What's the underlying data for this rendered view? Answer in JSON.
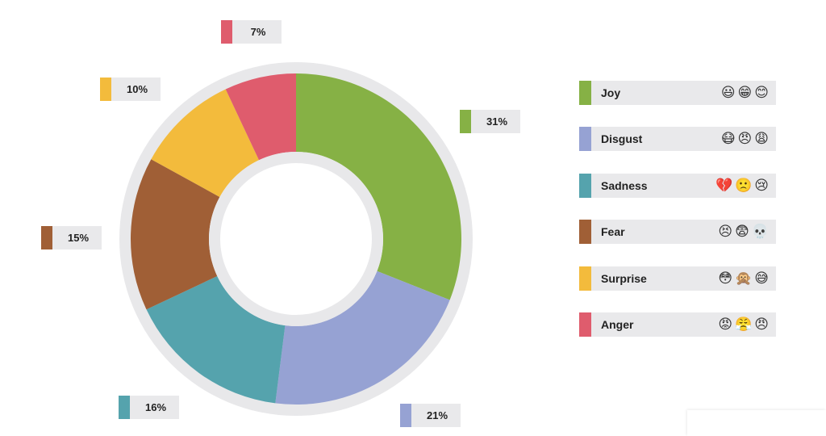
{
  "chart_data": {
    "type": "pie",
    "categories": [
      "Joy",
      "Disgust",
      "Sadness",
      "Fear",
      "Surprise",
      "Anger"
    ],
    "values": [
      31,
      21,
      16,
      15,
      10,
      7
    ],
    "labels": [
      "31%",
      "21%",
      "16%",
      "15%",
      "10%",
      "7%"
    ],
    "colors": [
      "#86b145",
      "#96a2d3",
      "#55a3ad",
      "#a05f36",
      "#f3bb3c",
      "#df5c6d"
    ],
    "ring_color": "#e8e8ea",
    "donut": true,
    "legend_position": "right"
  },
  "legend": [
    {
      "label": "Joy",
      "color": "#86b145",
      "emoji": "😃😁😊"
    },
    {
      "label": "Disgust",
      "color": "#96a2d3",
      "emoji": "😷😠😩"
    },
    {
      "label": "Sadness",
      "color": "#55a3ad",
      "emoji": "💔🙁😢"
    },
    {
      "label": "Fear",
      "color": "#a05f36",
      "emoji": "😣😨💀"
    },
    {
      "label": "Surprise",
      "color": "#f3bb3c",
      "emoji": "😳🙊😅"
    },
    {
      "label": "Anger",
      "color": "#df5c6d",
      "emoji": "😡😤😠"
    }
  ]
}
